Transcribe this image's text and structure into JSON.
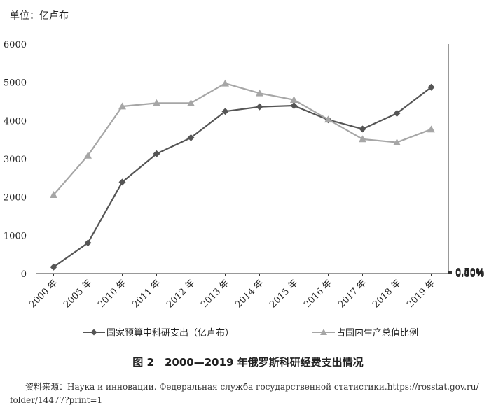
{
  "unit_label": "单位：亿卢布",
  "figure_caption": "图 2　2000—2019 年俄罗斯科研经费支出情况",
  "source_line1": "资料来源：Наука и инновации. Федеральная служба государственной статистики.https://rosstat.gov.ru/",
  "source_line2": "folder/14477?print=1",
  "chart_data": {
    "type": "line",
    "categories": [
      "2000 年",
      "2005 年",
      "2010 年",
      "2011 年",
      "2012 年",
      "2013 年",
      "2014 年",
      "2015 年",
      "2016 年",
      "2017 年",
      "2018 年",
      "2019 年"
    ],
    "y_left": {
      "ticks": [
        "6000",
        "5000",
        "4000",
        "3000",
        "2000",
        "1000",
        "0"
      ],
      "range": [
        0,
        6000
      ]
    },
    "y_right": {
      "ticks": [
        "0.70%",
        "0.60%",
        "0.50%",
        "0.40%",
        "0.30%",
        "0.20%",
        "0.10%",
        "0.00%"
      ],
      "range": [
        0,
        0.7
      ]
    },
    "series": [
      {
        "name": "国家预算中科研支出（亿卢布）",
        "axis": "left",
        "marker": "diamond",
        "color": "#555555",
        "values": [
          170,
          800,
          2390,
          3130,
          3550,
          4240,
          4360,
          4390,
          4020,
          3780,
          4190,
          4870
        ]
      },
      {
        "name": "占国内生产总值比例",
        "axis": "right",
        "marker": "triangle",
        "color": "#a6a6a6",
        "values": [
          0.24,
          0.36,
          0.51,
          0.52,
          0.52,
          0.58,
          0.55,
          0.53,
          0.47,
          0.41,
          0.4,
          0.44
        ]
      }
    ],
    "grid": false,
    "legend": "bottom"
  }
}
